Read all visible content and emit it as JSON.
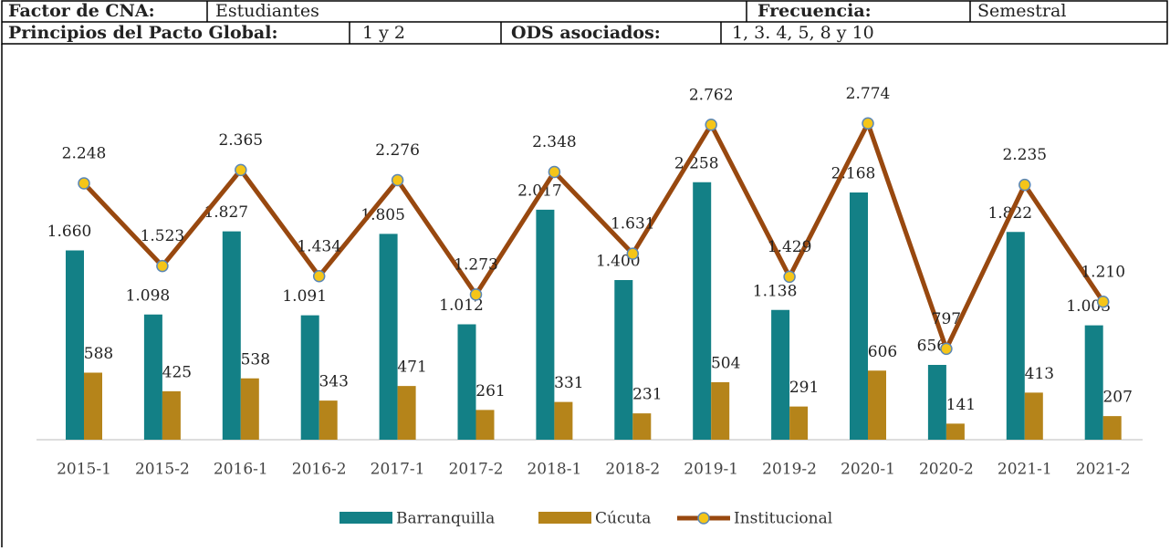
{
  "header": {
    "rows": [
      [
        {
          "label": "Factor de CNA:"
        },
        {
          "label": "Estudiantes"
        },
        {
          "label": "Frecuencia:"
        },
        {
          "label": "Semestral"
        }
      ],
      [
        {
          "label": "Principios del Pacto Global:"
        },
        {
          "label": "1 y 2"
        },
        {
          "label": "ODS asociados:"
        },
        {
          "label": "1, 3. 4, 5, 8 y 10"
        }
      ]
    ]
  },
  "chart_data": {
    "type": "bar-line",
    "categories": [
      "2015-1",
      "2015-2",
      "2016-1",
      "2016-2",
      "2017-1",
      "2017-2",
      "2018-1",
      "2018-2",
      "2019-1",
      "2019-2",
      "2020-1",
      "2020-2",
      "2021-1",
      "2021-2"
    ],
    "series": [
      {
        "name": "Barranquilla",
        "color": "#138086",
        "kind": "bar",
        "values": [
          1660,
          1098,
          1827,
          1091,
          1805,
          1012,
          2017,
          1400,
          2258,
          1138,
          2168,
          656,
          1822,
          1003
        ],
        "value_labels": [
          "1.660",
          "1.098",
          "1.827",
          "1.091",
          "1.805",
          "1.012",
          "2.017",
          "1.400",
          "2.258",
          "1.138",
          "2.168",
          "656",
          "1.822",
          "1.003"
        ]
      },
      {
        "name": "Cúcuta",
        "color": "#b5841a",
        "kind": "bar",
        "values": [
          588,
          425,
          538,
          343,
          471,
          261,
          331,
          231,
          504,
          291,
          606,
          141,
          413,
          207
        ],
        "value_labels": [
          "588",
          "425",
          "538",
          "343",
          "471",
          "261",
          "331",
          "231",
          "504",
          "291",
          "606",
          "141",
          "413",
          "207"
        ]
      },
      {
        "name": "Institucional",
        "color": "#98480f",
        "kind": "line",
        "marker_color": "#f5c518",
        "values": [
          2248,
          1523,
          2365,
          1434,
          2276,
          1273,
          2348,
          1631,
          2762,
          1429,
          2774,
          797,
          2235,
          1210
        ],
        "value_labels": [
          "2.248",
          "1.523",
          "2.365",
          "1.434",
          "2.276",
          "1.273",
          "2.348",
          "1.631",
          "2.762",
          "1.429",
          "2.774",
          "797",
          "2.235",
          "1.210"
        ]
      }
    ],
    "legend": "bottom"
  }
}
